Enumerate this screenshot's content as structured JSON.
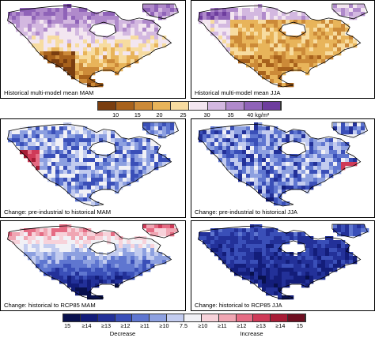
{
  "panels": [
    {
      "label": "Historical multi-model mean   MAM",
      "scheme": "abs_mam"
    },
    {
      "label": "Historical multi-model mean   JJA",
      "scheme": "abs_jja"
    },
    {
      "label": "Change: pre-industrial to historical   MAM",
      "scheme": "chg_pi_mam"
    },
    {
      "label": "Change: pre-industrial to historical   JJA",
      "scheme": "chg_pi_jja"
    },
    {
      "label": "Change: historical to RCP85   MAM",
      "scheme": "chg_rcp_mam"
    },
    {
      "label": "Change: historical to RCP85   JJA",
      "scheme": "chg_rcp_jja"
    }
  ],
  "colors": {
    "absolute": [
      "#7a3e10",
      "#a8621c",
      "#cc8a38",
      "#e8b45a",
      "#f7dca0",
      "#f3e6f0",
      "#d3b8e0",
      "#b08acb",
      "#8f63b8",
      "#6e3d9e"
    ],
    "change": [
      "#08104d",
      "#131d7a",
      "#233199",
      "#3a4fb8",
      "#5f76d0",
      "#8da0e0",
      "#c3ccef",
      "#f1f1f6",
      "#f7d2da",
      "#f0a6b3",
      "#e56c84",
      "#cf3a58",
      "#a81c36",
      "#6e0e20"
    ]
  },
  "chart_data": {
    "type": "heatmap",
    "maps": [
      {
        "title": "Historical multi-model mean   MAM",
        "season": "MAM"
      },
      {
        "title": "Historical multi-model mean   JJA",
        "season": "JJA"
      },
      {
        "title": "Change: pre-industrial to historical   MAM",
        "season": "MAM"
      },
      {
        "title": "Change: pre-industrial to historical   JJA",
        "season": "JJA"
      },
      {
        "title": "Change: historical to RCP85   MAM",
        "season": "MAM"
      },
      {
        "title": "Change: historical to RCP85   JJA",
        "season": "JJA"
      }
    ],
    "colorbar_absolute": {
      "ticks": [
        "10",
        "15",
        "20",
        "25",
        "30",
        "35",
        "40 kg/m²"
      ],
      "range": [
        5,
        45
      ],
      "step": 5
    },
    "colorbar_change": {
      "ticks": [
        "15",
        "≥14",
        "≥13",
        "≥12",
        "≥11",
        "≥10",
        "7.5",
        "≥10",
        "≥11",
        "≥12",
        "≥13",
        "≥14",
        "15"
      ],
      "labels": {
        "decrease": "Decrease",
        "increase": "Increase"
      }
    }
  }
}
